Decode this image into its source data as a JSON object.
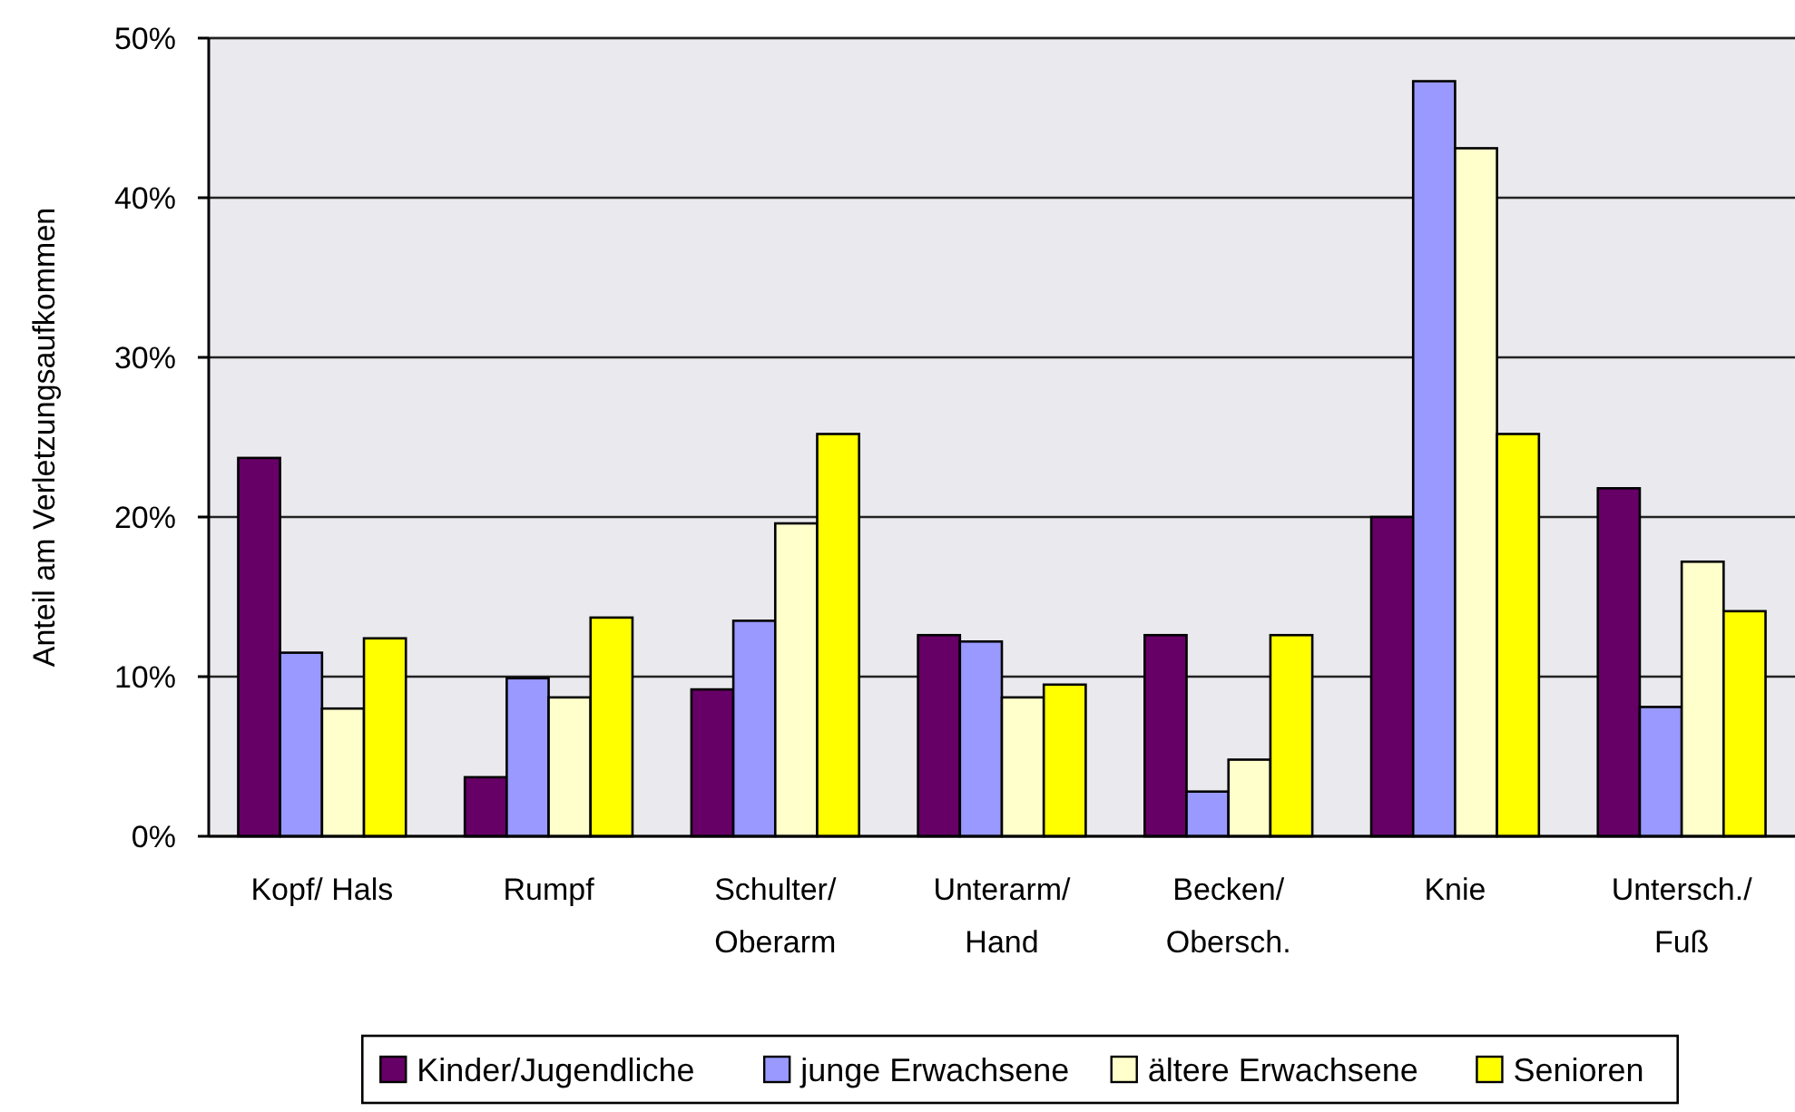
{
  "chart_data": {
    "type": "bar",
    "ylabel": "Anteil am Verletzungsaufkommen",
    "categories": [
      "Kopf/ Hals",
      "Rumpf",
      "Schulter/\nOberarm",
      "Unterarm/\nHand",
      "Becken/\nObersch.",
      "Knie",
      "Untersch./\nFuß"
    ],
    "series": [
      {
        "name": "Kinder/Jugendliche",
        "color": "#660066",
        "values": [
          23.7,
          3.7,
          9.2,
          12.6,
          12.6,
          20.0,
          21.8
        ]
      },
      {
        "name": "junge Erwachsene",
        "color": "#9999ff",
        "values": [
          11.5,
          9.9,
          13.5,
          12.2,
          2.8,
          47.3,
          8.1
        ]
      },
      {
        "name": "ältere Erwachsene",
        "color": "#ffffcc",
        "values": [
          8.0,
          8.7,
          19.6,
          8.7,
          4.8,
          43.1,
          17.2
        ]
      },
      {
        "name": "Senioren",
        "color": "#ffff00",
        "values": [
          12.4,
          13.7,
          25.2,
          9.5,
          12.6,
          25.2,
          14.1
        ]
      }
    ],
    "ylim": [
      0,
      50
    ],
    "yticks": [
      {
        "value": 0,
        "label": "0%"
      },
      {
        "value": 10,
        "label": "10%"
      },
      {
        "value": 20,
        "label": "20%"
      },
      {
        "value": 30,
        "label": "30%"
      },
      {
        "value": 40,
        "label": "40%"
      },
      {
        "value": 50,
        "label": "50%"
      }
    ],
    "grid": "y",
    "legend": "bottom"
  }
}
